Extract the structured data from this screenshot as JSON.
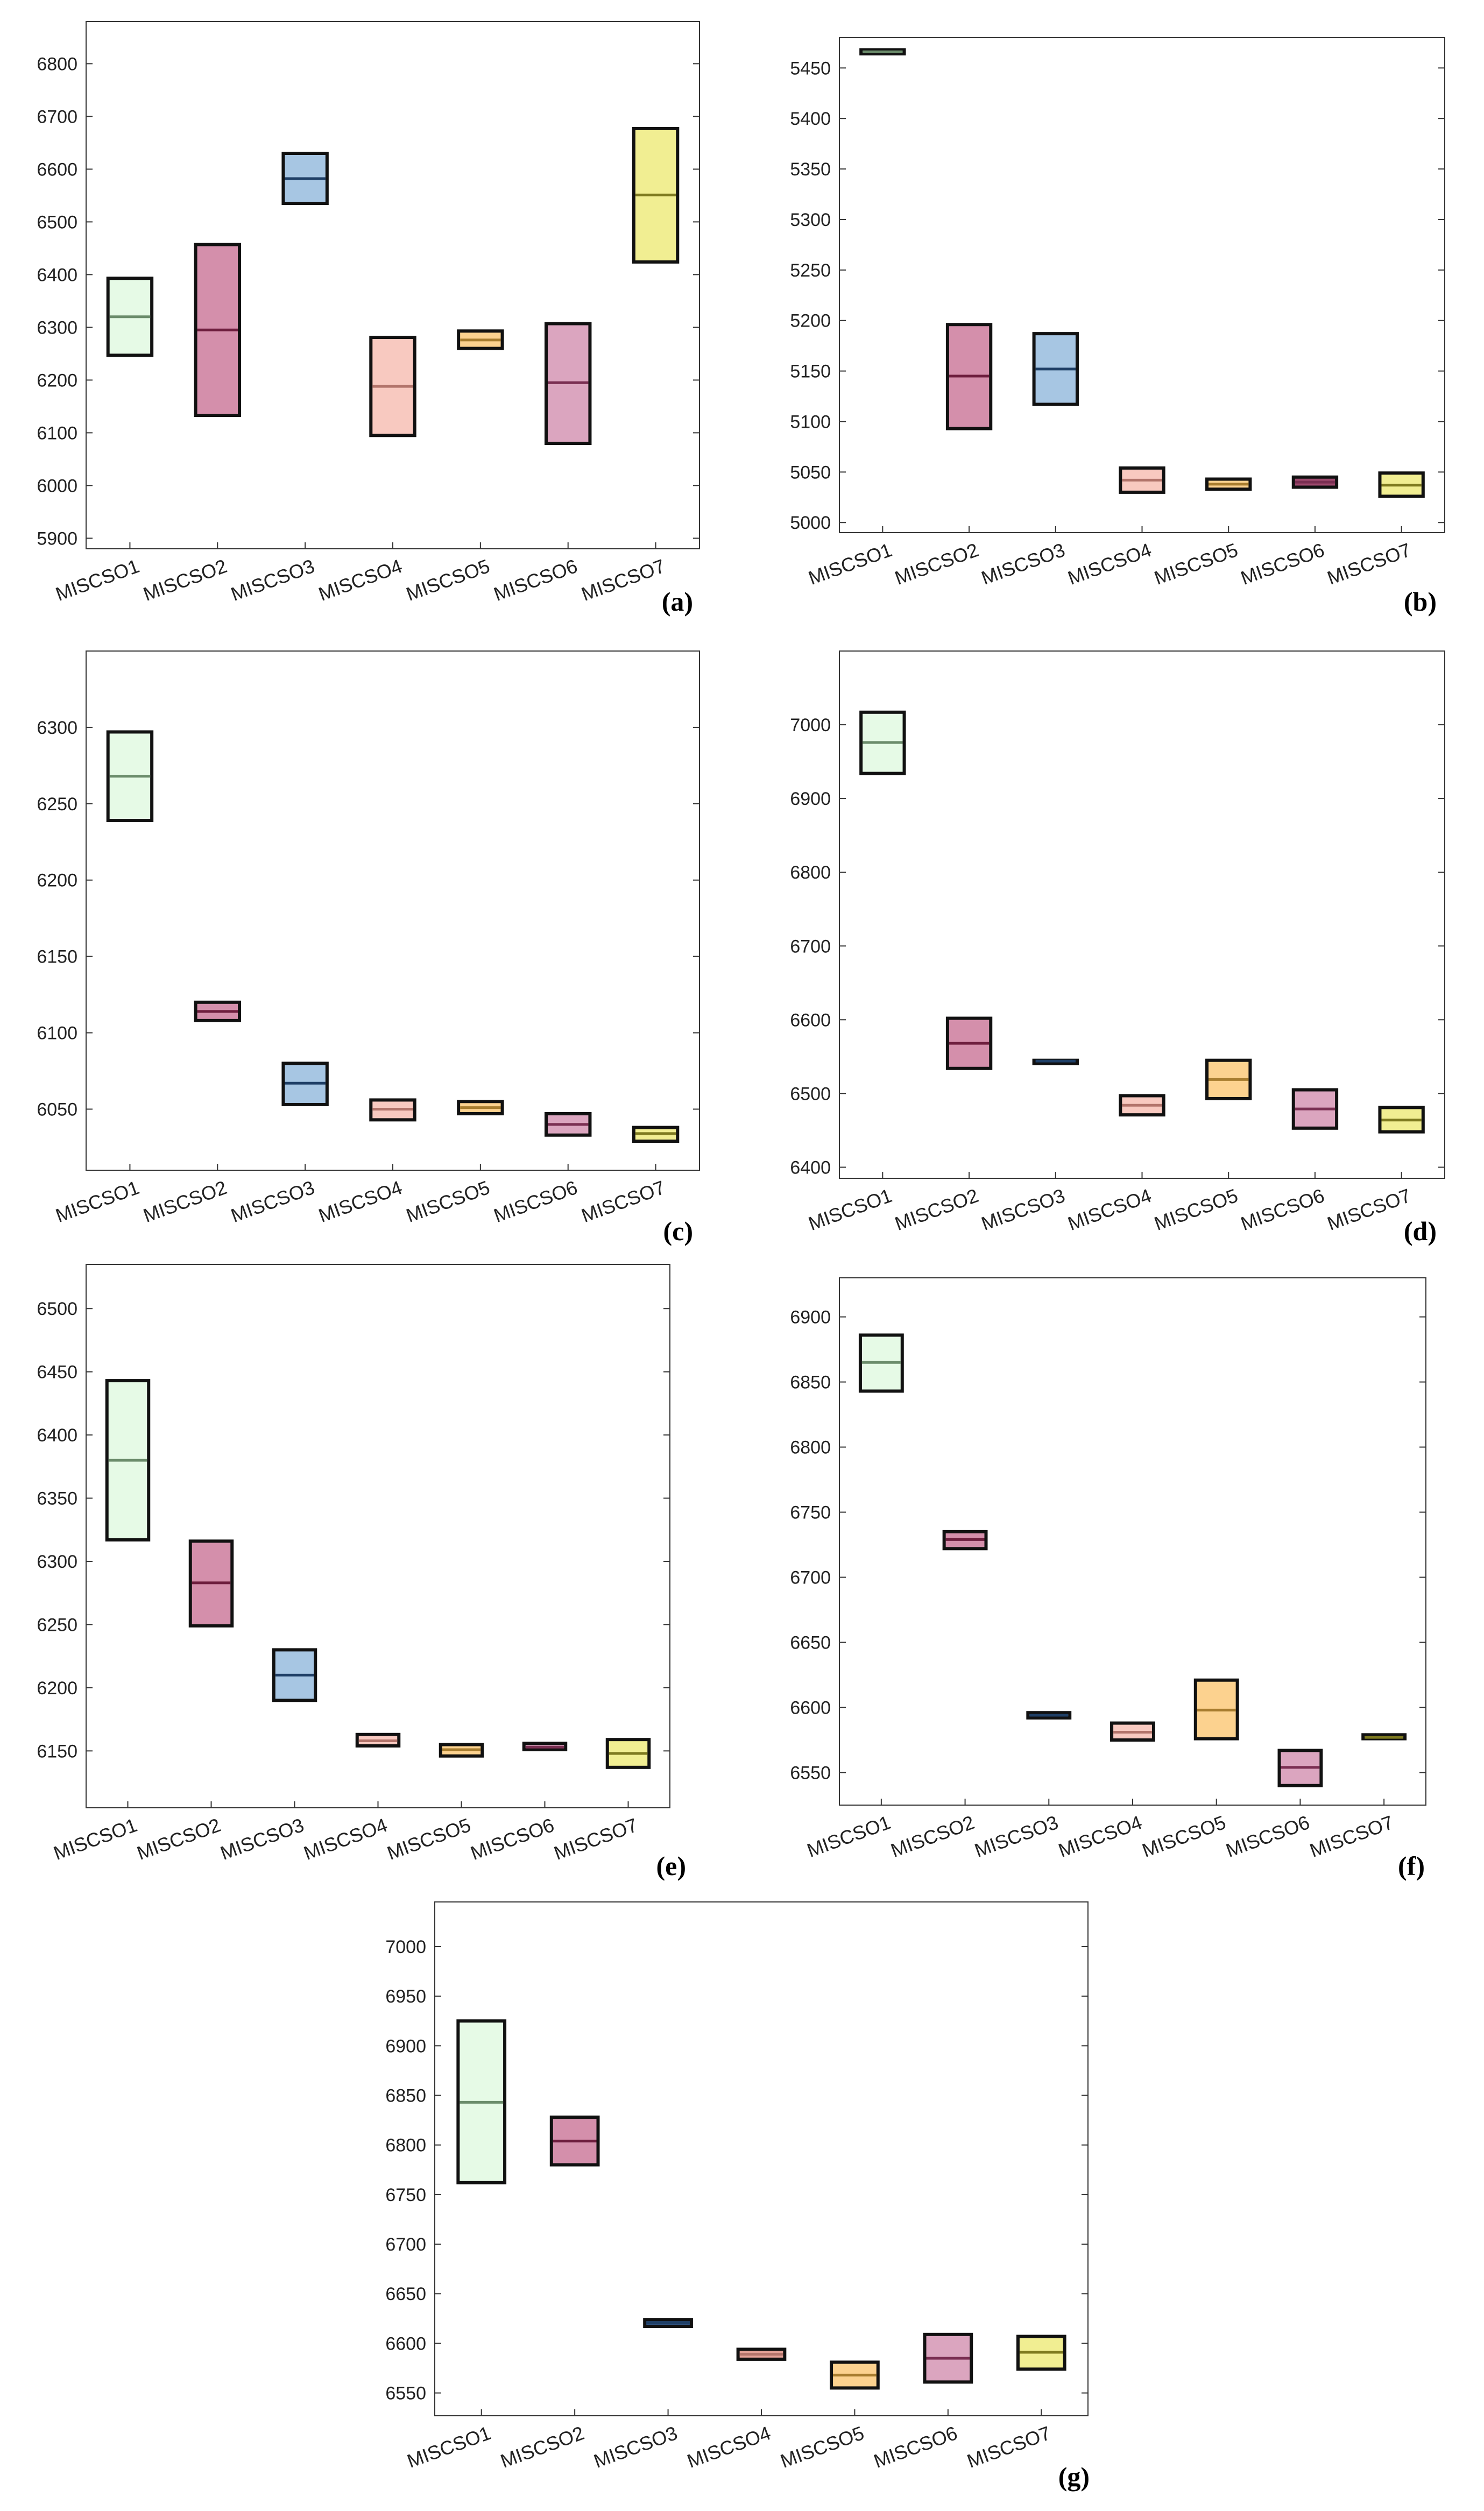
{
  "chart_data": [
    {
      "type": "box",
      "panel_label": "(a)",
      "categories": [
        "MISCSO1",
        "MISCSO2",
        "MISCSO3",
        "MISCSO4",
        "MISCSO5",
        "MISCSO6",
        "MISCSO7"
      ],
      "boxes": [
        {
          "q1": 6247,
          "median": 6320,
          "q3": 6393
        },
        {
          "q1": 6133,
          "median": 6295,
          "q3": 6457
        },
        {
          "q1": 6535,
          "median": 6582,
          "q3": 6630
        },
        {
          "q1": 6095,
          "median": 6188,
          "q3": 6281
        },
        {
          "q1": 6260,
          "median": 6276,
          "q3": 6293
        },
        {
          "q1": 6080,
          "median": 6195,
          "q3": 6307
        },
        {
          "q1": 6424,
          "median": 6551,
          "q3": 6677
        }
      ],
      "yticks": [
        5900,
        6000,
        6100,
        6200,
        6300,
        6400,
        6500,
        6600,
        6700,
        6800
      ],
      "ylim": [
        5880,
        6880
      ]
    },
    {
      "type": "box",
      "panel_label": "(b)",
      "categories": [
        "MISCSO1",
        "MISCSO2",
        "MISCSO3",
        "MISCSO4",
        "MISCSO5",
        "MISCSO6",
        "MISCSO7"
      ],
      "boxes": [
        {
          "q1": 5464,
          "median": 5466,
          "q3": 5468
        },
        {
          "q1": 5093,
          "median": 5145,
          "q3": 5196
        },
        {
          "q1": 5117,
          "median": 5152,
          "q3": 5187
        },
        {
          "q1": 5030,
          "median": 5042,
          "q3": 5054
        },
        {
          "q1": 5033,
          "median": 5038,
          "q3": 5043
        },
        {
          "q1": 5035,
          "median": 5040,
          "q3": 5045
        },
        {
          "q1": 5026,
          "median": 5037,
          "q3": 5049
        }
      ],
      "yticks": [
        5000,
        5050,
        5100,
        5150,
        5200,
        5250,
        5300,
        5350,
        5400,
        5450
      ],
      "ylim": [
        4990,
        5480
      ]
    },
    {
      "type": "box",
      "panel_label": "(c)",
      "categories": [
        "MISCSO1",
        "MISCSO2",
        "MISCSO3",
        "MISCSO4",
        "MISCSO5",
        "MISCSO6",
        "MISCSO7"
      ],
      "boxes": [
        {
          "q1": 6239,
          "median": 6268,
          "q3": 6297
        },
        {
          "q1": 6108,
          "median": 6114,
          "q3": 6120
        },
        {
          "q1": 6053,
          "median": 6067,
          "q3": 6080
        },
        {
          "q1": 6043,
          "median": 6050,
          "q3": 6056
        },
        {
          "q1": 6047,
          "median": 6051,
          "q3": 6055
        },
        {
          "q1": 6033,
          "median": 6040,
          "q3": 6047
        },
        {
          "q1": 6029,
          "median": 6034,
          "q3": 6038
        }
      ],
      "yticks": [
        6050,
        6100,
        6150,
        6200,
        6250,
        6300
      ],
      "ylim": [
        6010,
        6350
      ]
    },
    {
      "type": "box",
      "panel_label": "(d)",
      "categories": [
        "MISCSO1",
        "MISCSO2",
        "MISCSO3",
        "MISCSO4",
        "MISCSO5",
        "MISCSO6",
        "MISCSO7"
      ],
      "boxes": [
        {
          "q1": 6934,
          "median": 6976,
          "q3": 7017
        },
        {
          "q1": 6534,
          "median": 6568,
          "q3": 6602
        },
        {
          "q1": 6543,
          "median": 6544,
          "q3": 6545
        },
        {
          "q1": 6471,
          "median": 6484,
          "q3": 6497
        },
        {
          "q1": 6493,
          "median": 6519,
          "q3": 6545
        },
        {
          "q1": 6453,
          "median": 6479,
          "q3": 6505
        },
        {
          "q1": 6448,
          "median": 6464,
          "q3": 6481
        }
      ],
      "yticks": [
        6400,
        6500,
        6600,
        6700,
        6800,
        6900,
        7000
      ],
      "ylim": [
        6385,
        7100
      ]
    },
    {
      "type": "box",
      "panel_label": "(e)",
      "categories": [
        "MISCSO1",
        "MISCSO2",
        "MISCSO3",
        "MISCSO4",
        "MISCSO5",
        "MISCSO6",
        "MISCSO7"
      ],
      "boxes": [
        {
          "q1": 6317,
          "median": 6380,
          "q3": 6443
        },
        {
          "q1": 6249,
          "median": 6283,
          "q3": 6316
        },
        {
          "q1": 6190,
          "median": 6210,
          "q3": 6230
        },
        {
          "q1": 6154,
          "median": 6158,
          "q3": 6163
        },
        {
          "q1": 6146,
          "median": 6151,
          "q3": 6155
        },
        {
          "q1": 6151,
          "median": 6153,
          "q3": 6156
        },
        {
          "q1": 6137,
          "median": 6148,
          "q3": 6159
        }
      ],
      "yticks": [
        6150,
        6200,
        6250,
        6300,
        6350,
        6400,
        6450,
        6500
      ],
      "ylim": [
        6105,
        6535
      ]
    },
    {
      "type": "box",
      "panel_label": "(f)",
      "categories": [
        "MISCSO1",
        "MISCSO2",
        "MISCSO3",
        "MISCSO4",
        "MISCSO5",
        "MISCSO6",
        "MISCSO7"
      ],
      "boxes": [
        {
          "q1": 6843,
          "median": 6865,
          "q3": 6886
        },
        {
          "q1": 6722,
          "median": 6729,
          "q3": 6735
        },
        {
          "q1": 6592,
          "median": 6594,
          "q3": 6596
        },
        {
          "q1": 6575,
          "median": 6581,
          "q3": 6588
        },
        {
          "q1": 6576,
          "median": 6598,
          "q3": 6621
        },
        {
          "q1": 6540,
          "median": 6554,
          "q3": 6567
        },
        {
          "q1": 6576,
          "median": 6577,
          "q3": 6579
        }
      ],
      "yticks": [
        6550,
        6600,
        6650,
        6700,
        6750,
        6800,
        6850,
        6900
      ],
      "ylim": [
        6525,
        6930
      ]
    },
    {
      "type": "box",
      "panel_label": "(g)",
      "categories": [
        "MISCSO1",
        "MISCSO2",
        "MISCSO3",
        "MISCSO4",
        "MISCSO5",
        "MISCSO6",
        "MISCSO7"
      ],
      "boxes": [
        {
          "q1": 6762,
          "median": 6843,
          "q3": 6925
        },
        {
          "q1": 6780,
          "median": 6804,
          "q3": 6828
        },
        {
          "q1": 6617,
          "median": 6621,
          "q3": 6624
        },
        {
          "q1": 6584,
          "median": 6589,
          "q3": 6594
        },
        {
          "q1": 6555,
          "median": 6568,
          "q3": 6581
        },
        {
          "q1": 6561,
          "median": 6585,
          "q3": 6609
        },
        {
          "q1": 6574,
          "median": 6591,
          "q3": 6607
        }
      ],
      "yticks": [
        6550,
        6600,
        6650,
        6700,
        6750,
        6800,
        6850,
        6900,
        6950,
        7000
      ],
      "ylim": [
        6527,
        7045
      ]
    }
  ],
  "colors": {
    "fills": [
      "#e6fae6",
      "#d48fab",
      "#a7c6e3",
      "#f8c9c0",
      "#fcd28f",
      "#dba5bf",
      "#f1ee92"
    ],
    "medians": [
      "#6b8c6b",
      "#6e1e3e",
      "#1f3f66",
      "#b2746b",
      "#a87d2f",
      "#7a2f52",
      "#7e7a1f"
    ],
    "panel_b_fills": [
      "#e6fae6",
      "#d48fab",
      "#a7c6e3",
      "#f8c9c0",
      "#fcd28f",
      "#9e4a6e",
      "#f1ee92"
    ],
    "panel_g_fills": [
      "#e6fae6",
      "#d48fab",
      "#2f4f7a",
      "#e3a197",
      "#fcd28f",
      "#dba5bf",
      "#f1ee92"
    ],
    "box_stroke": "#111111",
    "axis_stroke": "#333333"
  }
}
